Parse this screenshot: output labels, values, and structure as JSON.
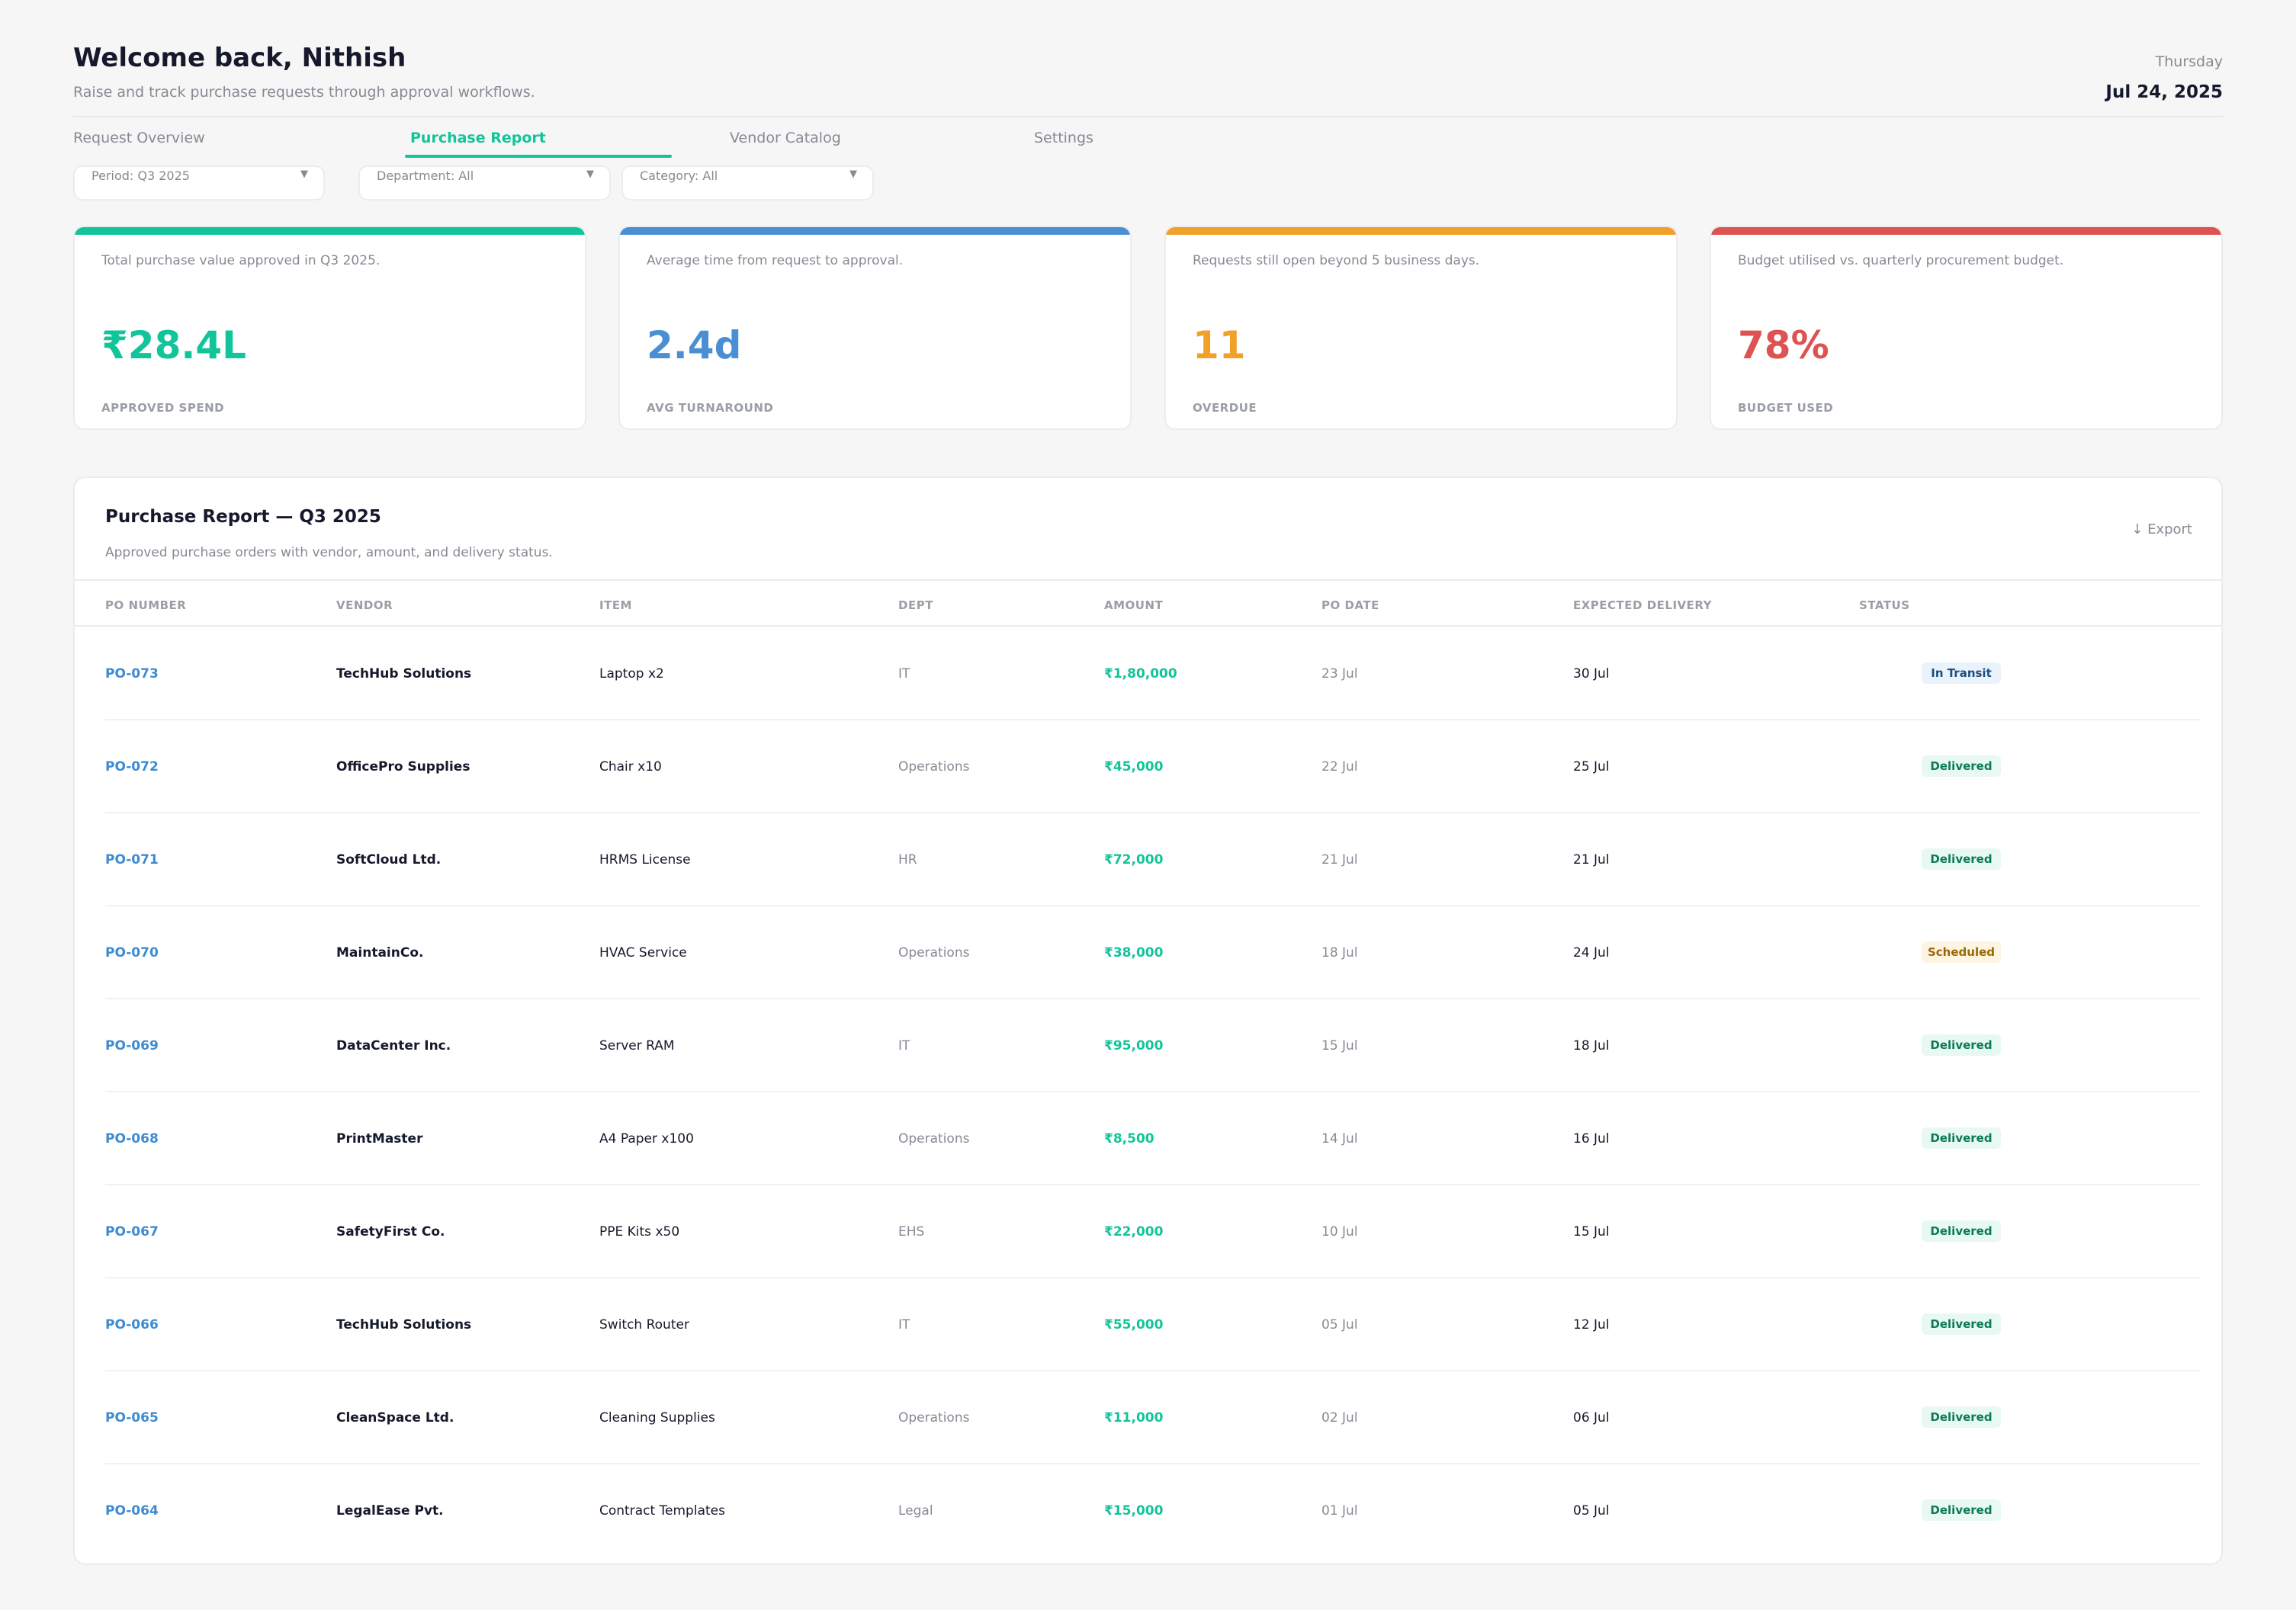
{
  "header": {
    "greeting": "Welcome back, Nithish",
    "subtitle": "Raise and track purchase requests through approval workflows.",
    "weekday": "Thursday",
    "date": "Jul 24, 2025"
  },
  "tabs": [
    {
      "label": "Request Overview",
      "active": false
    },
    {
      "label": "Purchase Report",
      "active": true
    },
    {
      "label": "Vendor Catalog",
      "active": false
    },
    {
      "label": "Settings",
      "active": false
    }
  ],
  "filters": [
    {
      "label": "Period: Q3 2025"
    },
    {
      "label": "Department: All"
    },
    {
      "label": "Category: All"
    }
  ],
  "kpis": [
    {
      "description": "Total purchase value approved in Q3 2025.",
      "value": "₹28.4L",
      "label": "APPROVED SPEND",
      "color": "#12c49a"
    },
    {
      "description": "Average time from request to approval.",
      "value": "2.4d",
      "label": "AVG TURNAROUND",
      "color": "#4a8fd3"
    },
    {
      "description": "Requests still open beyond 5 business days.",
      "value": "11",
      "label": "OVERDUE",
      "color": "#f1a02a"
    },
    {
      "description": "Budget utilised vs. quarterly procurement budget.",
      "value": "78%",
      "label": "BUDGET USED",
      "color": "#dc5352"
    }
  ],
  "report": {
    "title": "Purchase Report — Q3 2025",
    "subtitle": "Approved purchase orders with vendor, amount, and delivery status.",
    "export_label": "↓ Export",
    "columns": [
      "PO NUMBER",
      "VENDOR",
      "ITEM",
      "DEPT",
      "AMOUNT",
      "PO DATE",
      "EXPECTED DELIVERY",
      "STATUS"
    ],
    "rows": [
      {
        "po": "PO-073",
        "vendor": "TechHub Solutions",
        "item": "Laptop x2",
        "dept": "IT",
        "amount": "₹1,80,000",
        "po_date": "23 Jul",
        "expected": "30 Jul",
        "status": "In Transit"
      },
      {
        "po": "PO-072",
        "vendor": "OfficePro Supplies",
        "item": "Chair x10",
        "dept": "Operations",
        "amount": "₹45,000",
        "po_date": "22 Jul",
        "expected": "25 Jul",
        "status": "Delivered"
      },
      {
        "po": "PO-071",
        "vendor": "SoftCloud Ltd.",
        "item": "HRMS License",
        "dept": "HR",
        "amount": "₹72,000",
        "po_date": "21 Jul",
        "expected": "21 Jul",
        "status": "Delivered"
      },
      {
        "po": "PO-070",
        "vendor": "MaintainCo.",
        "item": "HVAC Service",
        "dept": "Operations",
        "amount": "₹38,000",
        "po_date": "18 Jul",
        "expected": "24 Jul",
        "status": "Scheduled"
      },
      {
        "po": "PO-069",
        "vendor": "DataCenter Inc.",
        "item": "Server RAM",
        "dept": "IT",
        "amount": "₹95,000",
        "po_date": "15 Jul",
        "expected": "18 Jul",
        "status": "Delivered"
      },
      {
        "po": "PO-068",
        "vendor": "PrintMaster",
        "item": "A4 Paper x100",
        "dept": "Operations",
        "amount": "₹8,500",
        "po_date": "14 Jul",
        "expected": "16 Jul",
        "status": "Delivered"
      },
      {
        "po": "PO-067",
        "vendor": "SafetyFirst Co.",
        "item": "PPE Kits x50",
        "dept": "EHS",
        "amount": "₹22,000",
        "po_date": "10 Jul",
        "expected": "15 Jul",
        "status": "Delivered"
      },
      {
        "po": "PO-066",
        "vendor": "TechHub Solutions",
        "item": "Switch Router",
        "dept": "IT",
        "amount": "₹55,000",
        "po_date": "05 Jul",
        "expected": "12 Jul",
        "status": "Delivered"
      },
      {
        "po": "PO-065",
        "vendor": "CleanSpace Ltd.",
        "item": "Cleaning Supplies",
        "dept": "Operations",
        "amount": "₹11,000",
        "po_date": "02 Jul",
        "expected": "06 Jul",
        "status": "Delivered"
      },
      {
        "po": "PO-064",
        "vendor": "LegalEase Pvt.",
        "item": "Contract Templates",
        "dept": "Legal",
        "amount": "₹15,000",
        "po_date": "01 Jul",
        "expected": "05 Jul",
        "status": "Delivered"
      }
    ]
  }
}
